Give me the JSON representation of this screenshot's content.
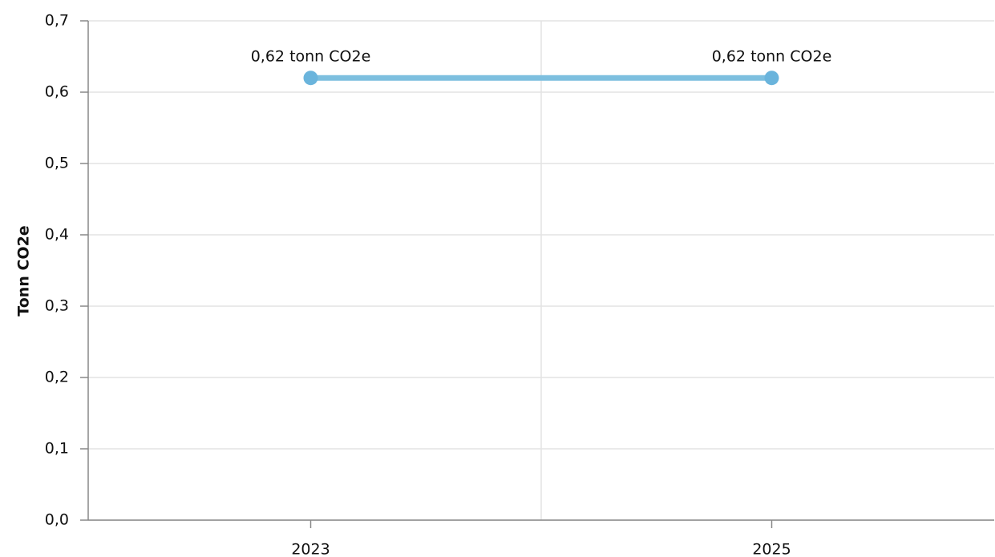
{
  "chart_data": {
    "type": "line",
    "y_label": "Tonn CO2e",
    "categories": [
      "2023",
      "2025"
    ],
    "series": [
      {
        "name": "Tonn CO2e",
        "color": "#7dbfdf",
        "marker_color": "#6ab4dc",
        "values": [
          0.62,
          0.62
        ],
        "value_labels": [
          "0,62 tonn CO2e",
          "0,62 tonn CO2e"
        ]
      }
    ],
    "ylim": [
      0,
      0.7
    ],
    "yticks": [
      {
        "value": 0,
        "label": "0,0"
      },
      {
        "value": 0.1,
        "label": "0,1"
      },
      {
        "value": 0.2,
        "label": "0,2"
      },
      {
        "value": 0.3,
        "label": "0,3"
      },
      {
        "value": 0.4,
        "label": "0,4"
      },
      {
        "value": 0.5,
        "label": "0,5"
      },
      {
        "value": 0.6,
        "label": "0,6"
      },
      {
        "value": 0.7,
        "label": "0,7"
      }
    ],
    "grid": true
  }
}
